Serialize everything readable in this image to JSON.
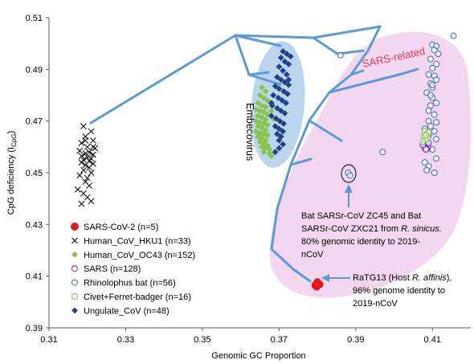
{
  "chart_data": {
    "type": "scatter",
    "title": "",
    "xlabel": "Genomic GC Proportion",
    "ylabel_main": "CpG deficiency (I",
    "ylabel_sub": "CpG",
    "ylabel_tail": ")",
    "xlim": [
      0.31,
      0.42
    ],
    "ylim": [
      0.39,
      0.51
    ],
    "x_ticks": [
      {
        "v": 0.31,
        "label": "0.31"
      },
      {
        "v": 0.33,
        "label": "0.33"
      },
      {
        "v": 0.35,
        "label": "0.35"
      },
      {
        "v": 0.37,
        "label": "0.37"
      },
      {
        "v": 0.39,
        "label": "0.39"
      },
      {
        "v": 0.41,
        "label": "0.41"
      }
    ],
    "y_ticks": [
      {
        "v": 0.39,
        "label": "0.39"
      },
      {
        "v": 0.41,
        "label": "0.41"
      },
      {
        "v": 0.43,
        "label": "0.43"
      },
      {
        "v": 0.45,
        "label": "0.45"
      },
      {
        "v": 0.47,
        "label": "0.47"
      },
      {
        "v": 0.49,
        "label": "0.49"
      },
      {
        "v": 0.51,
        "label": "0.51"
      }
    ],
    "grid": false,
    "legend_position": "bottom-left",
    "colors": {
      "tree": "#5b9bd5",
      "sars_region": "#f3d6f0",
      "embeco_region": "#bcd5ee",
      "sars_related_label": "#e03b5a"
    },
    "series": [
      {
        "name": "SARS-CoV-2 (n=5)",
        "marker": "filled-circle",
        "color": "#e31a1c",
        "points": [
          [
            0.3795,
            0.4065
          ],
          [
            0.38,
            0.4075
          ],
          [
            0.3805,
            0.4068
          ],
          [
            0.3798,
            0.406
          ],
          [
            0.3802,
            0.4072
          ]
        ]
      },
      {
        "name": "Human_CoV_HKU1 (n=33)",
        "marker": "cross",
        "color": "#000000",
        "points": [
          [
            0.319,
            0.468
          ],
          [
            0.321,
            0.466
          ],
          [
            0.3195,
            0.464
          ],
          [
            0.3215,
            0.4625
          ],
          [
            0.3185,
            0.4615
          ],
          [
            0.32,
            0.46
          ],
          [
            0.322,
            0.4595
          ],
          [
            0.318,
            0.4585
          ],
          [
            0.3205,
            0.458
          ],
          [
            0.3195,
            0.4575
          ],
          [
            0.3215,
            0.457
          ],
          [
            0.3185,
            0.4565
          ],
          [
            0.32,
            0.456
          ],
          [
            0.321,
            0.4555
          ],
          [
            0.319,
            0.455
          ],
          [
            0.3205,
            0.4545
          ],
          [
            0.3185,
            0.454
          ],
          [
            0.3215,
            0.4535
          ],
          [
            0.3195,
            0.453
          ],
          [
            0.3205,
            0.452
          ],
          [
            0.319,
            0.451
          ],
          [
            0.321,
            0.45
          ],
          [
            0.318,
            0.449
          ],
          [
            0.32,
            0.448
          ],
          [
            0.3195,
            0.4465
          ],
          [
            0.3205,
            0.445
          ],
          [
            0.3175,
            0.4435
          ],
          [
            0.319,
            0.442
          ],
          [
            0.32,
            0.4405
          ],
          [
            0.321,
            0.439
          ],
          [
            0.3185,
            0.438
          ],
          [
            0.3215,
            0.46
          ],
          [
            0.3195,
            0.4625
          ]
        ]
      },
      {
        "name": "Human_CoV_OC43 (n=152)",
        "marker": "diamond",
        "color": "#8bc34a",
        "points": [
          [
            0.3655,
            0.483
          ],
          [
            0.3665,
            0.4815
          ],
          [
            0.365,
            0.48
          ],
          [
            0.366,
            0.479
          ],
          [
            0.367,
            0.478
          ],
          [
            0.3645,
            0.477
          ],
          [
            0.3655,
            0.476
          ],
          [
            0.3665,
            0.4755
          ],
          [
            0.364,
            0.4745
          ],
          [
            0.365,
            0.474
          ],
          [
            0.366,
            0.4735
          ],
          [
            0.367,
            0.4725
          ],
          [
            0.3645,
            0.472
          ],
          [
            0.3655,
            0.4715
          ],
          [
            0.3665,
            0.4705
          ],
          [
            0.364,
            0.47
          ],
          [
            0.365,
            0.4695
          ],
          [
            0.366,
            0.469
          ],
          [
            0.367,
            0.4685
          ],
          [
            0.3645,
            0.468
          ],
          [
            0.3655,
            0.4675
          ],
          [
            0.3665,
            0.4665
          ],
          [
            0.364,
            0.466
          ],
          [
            0.365,
            0.4655
          ],
          [
            0.366,
            0.465
          ],
          [
            0.367,
            0.4645
          ],
          [
            0.3645,
            0.464
          ],
          [
            0.3655,
            0.4635
          ],
          [
            0.3665,
            0.4625
          ],
          [
            0.365,
            0.462
          ],
          [
            0.366,
            0.4615
          ],
          [
            0.367,
            0.4605
          ],
          [
            0.3655,
            0.46
          ],
          [
            0.3665,
            0.4595
          ],
          [
            0.3675,
            0.459
          ],
          [
            0.366,
            0.458
          ],
          [
            0.3675,
            0.4575
          ],
          [
            0.368,
            0.4565
          ],
          [
            0.3685,
            0.471
          ],
          [
            0.368,
            0.474
          ]
        ]
      },
      {
        "name": "SARS (n=128)",
        "marker": "open-circle",
        "color": "#7b2cbf",
        "points": [
          [
            0.408,
            0.462
          ],
          [
            0.4085,
            0.461
          ],
          [
            0.4078,
            0.4605
          ],
          [
            0.4082,
            0.46
          ],
          [
            0.4088,
            0.4598
          ],
          [
            0.408,
            0.4595
          ],
          [
            0.4085,
            0.4592
          ],
          [
            0.4075,
            0.4608
          ],
          [
            0.409,
            0.4615
          ],
          [
            0.4083,
            0.459
          ]
        ]
      },
      {
        "name": "Rhinolophus bat (n=56)",
        "marker": "open-circle",
        "color": "#3a6fb5",
        "points": [
          [
            0.4155,
            0.503
          ],
          [
            0.41,
            0.4995
          ],
          [
            0.411,
            0.499
          ],
          [
            0.4105,
            0.4975
          ],
          [
            0.4115,
            0.496
          ],
          [
            0.4095,
            0.494
          ],
          [
            0.411,
            0.492
          ],
          [
            0.41,
            0.4905
          ],
          [
            0.409,
            0.488
          ],
          [
            0.4105,
            0.4875
          ],
          [
            0.411,
            0.486
          ],
          [
            0.4095,
            0.4845
          ],
          [
            0.41,
            0.483
          ],
          [
            0.4085,
            0.481
          ],
          [
            0.41,
            0.479
          ],
          [
            0.411,
            0.477
          ],
          [
            0.4095,
            0.476
          ],
          [
            0.409,
            0.474
          ],
          [
            0.4105,
            0.4725
          ],
          [
            0.409,
            0.47
          ],
          [
            0.411,
            0.4695
          ],
          [
            0.4095,
            0.468
          ],
          [
            0.408,
            0.467
          ],
          [
            0.4105,
            0.466
          ],
          [
            0.409,
            0.4645
          ],
          [
            0.411,
            0.463
          ],
          [
            0.4085,
            0.461
          ],
          [
            0.41,
            0.459
          ],
          [
            0.408,
            0.454
          ],
          [
            0.409,
            0.4525
          ],
          [
            0.4085,
            0.451
          ],
          [
            0.4105,
            0.45
          ],
          [
            0.386,
            0.4955
          ],
          [
            0.397,
            0.458
          ],
          [
            0.388,
            0.45
          ],
          [
            0.3885,
            0.449
          ],
          [
            0.38,
            0.408
          ],
          [
            0.411,
            0.4555
          ],
          [
            0.41,
            0.484
          ],
          [
            0.4095,
            0.48
          ]
        ]
      },
      {
        "name": "Civet+Ferret-badger (n=16)",
        "marker": "open-circle",
        "color": "#7cbf42",
        "points": [
          [
            0.408,
            0.466
          ],
          [
            0.4085,
            0.465
          ],
          [
            0.4078,
            0.464
          ],
          [
            0.4088,
            0.4635
          ],
          [
            0.4082,
            0.4628
          ],
          [
            0.4075,
            0.462
          ],
          [
            0.409,
            0.4655
          ],
          [
            0.4083,
            0.4645
          ]
        ]
      },
      {
        "name": "Ungulate_CoV (n=48)",
        "marker": "diamond",
        "color": "#1f3f86",
        "points": [
          [
            0.371,
            0.497
          ],
          [
            0.372,
            0.496
          ],
          [
            0.3705,
            0.4945
          ],
          [
            0.3715,
            0.493
          ],
          [
            0.3725,
            0.492
          ],
          [
            0.37,
            0.491
          ],
          [
            0.371,
            0.4895
          ],
          [
            0.372,
            0.488
          ],
          [
            0.3695,
            0.487
          ],
          [
            0.3705,
            0.486
          ],
          [
            0.3715,
            0.485
          ],
          [
            0.3725,
            0.484
          ],
          [
            0.369,
            0.4835
          ],
          [
            0.37,
            0.4825
          ],
          [
            0.3712,
            0.4815
          ],
          [
            0.3722,
            0.4805
          ],
          [
            0.3685,
            0.48
          ],
          [
            0.3698,
            0.479
          ],
          [
            0.3708,
            0.478
          ],
          [
            0.3718,
            0.477
          ],
          [
            0.3682,
            0.476
          ],
          [
            0.3695,
            0.475
          ],
          [
            0.3705,
            0.474
          ],
          [
            0.3715,
            0.473
          ],
          [
            0.368,
            0.472
          ],
          [
            0.3692,
            0.471
          ],
          [
            0.3702,
            0.47
          ],
          [
            0.3712,
            0.469
          ],
          [
            0.369,
            0.468
          ],
          [
            0.37,
            0.467
          ],
          [
            0.371,
            0.466
          ],
          [
            0.3695,
            0.465
          ],
          [
            0.3705,
            0.464
          ],
          [
            0.37,
            0.4625
          ],
          [
            0.371,
            0.461
          ],
          [
            0.37,
            0.4595
          ],
          [
            0.369,
            0.458
          ],
          [
            0.368,
            0.477
          ],
          [
            0.3725,
            0.486
          ],
          [
            0.373,
            0.495
          ]
        ]
      }
    ],
    "regions": [
      {
        "name": "embecovirus-region",
        "label": "Embecovirus"
      },
      {
        "name": "sars-related-region",
        "label": "SARS-related"
      }
    ],
    "annotations": [
      {
        "name": "annotation-zc45",
        "lines": [
          "Bat SARSr-CoV ZC45 and Bat",
          "SARSr-CoV ZXC21 from ",
          "80% genomic identity to 2019-",
          "nCoV"
        ],
        "italic_suffix": "R. sinicus."
      },
      {
        "name": "annotation-ratg13",
        "line1_prefix": "RaTG13 (Host ",
        "line1_italic": "R. affinis",
        "line1_suffix": "),",
        "lines": [
          "96% genome identity to",
          "2019-nCoV"
        ]
      }
    ]
  }
}
